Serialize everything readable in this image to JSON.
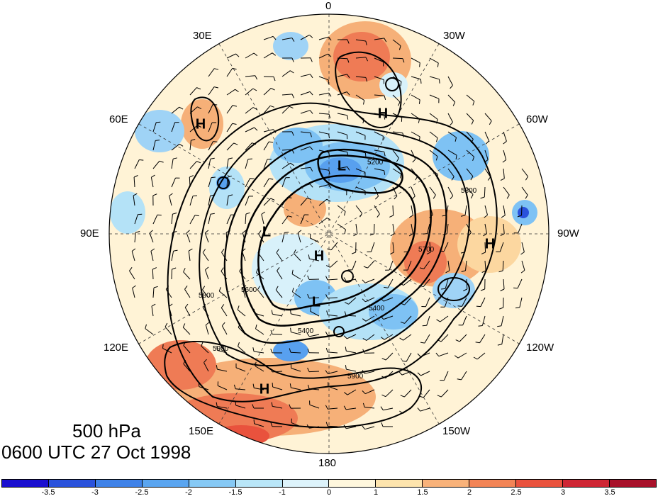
{
  "map": {
    "level": "500 hPa",
    "time": "0600 UTC 27 Oct 1998",
    "longitudes": {
      "top": "0",
      "bottom": "180",
      "left": "90E",
      "right": "90W",
      "upper_left_1": "30E",
      "upper_left_2": "60E",
      "upper_right_1": "30W",
      "upper_right_2": "60W",
      "lower_left_1": "120E",
      "lower_left_2": "150E",
      "lower_right_1": "120W",
      "lower_right_2": "150W"
    },
    "highs_lows": [
      {
        "type": "H",
        "label": "H"
      },
      {
        "type": "H",
        "label": "H"
      },
      {
        "type": "H",
        "label": "H"
      },
      {
        "type": "H",
        "label": "H"
      },
      {
        "type": "H",
        "label": "H"
      },
      {
        "type": "L",
        "label": "L"
      },
      {
        "type": "L",
        "label": "L"
      },
      {
        "type": "L",
        "label": "L"
      }
    ],
    "contour_labels": [
      "5200",
      "5400",
      "5600",
      "5700",
      "5800",
      "5900"
    ],
    "colors": {
      "-4": "#0a00c8",
      "-3.5": "#1f3fd6",
      "-3": "#3b78e6",
      "-2.5": "#58a0ef",
      "-2": "#7ec2f4",
      "-1.5": "#b4e2f7",
      "-1": "#d8f1fa",
      "0": "#fff6dc",
      "1": "#fde4ad",
      "1.5": "#f8b27a",
      "2": "#f28456",
      "2.5": "#e9523d",
      "3": "#cf2634",
      "3.5": "#a8112a"
    }
  },
  "colorbar": {
    "ticks": [
      "-3.5",
      "-3",
      "-2.5",
      "-2",
      "-1.5",
      "-1",
      "0",
      "1",
      "1.5",
      "2",
      "2.5",
      "3",
      "3.5"
    ],
    "colors": [
      "#1a0fd0",
      "#2a52dc",
      "#3f82e8",
      "#5aa5f0",
      "#86c9f5",
      "#b9e6f8",
      "#ddf3fb",
      "#fff7dd",
      "#fde4ad",
      "#f8b27a",
      "#f28456",
      "#e9523d",
      "#cf2634",
      "#a8112a"
    ]
  }
}
